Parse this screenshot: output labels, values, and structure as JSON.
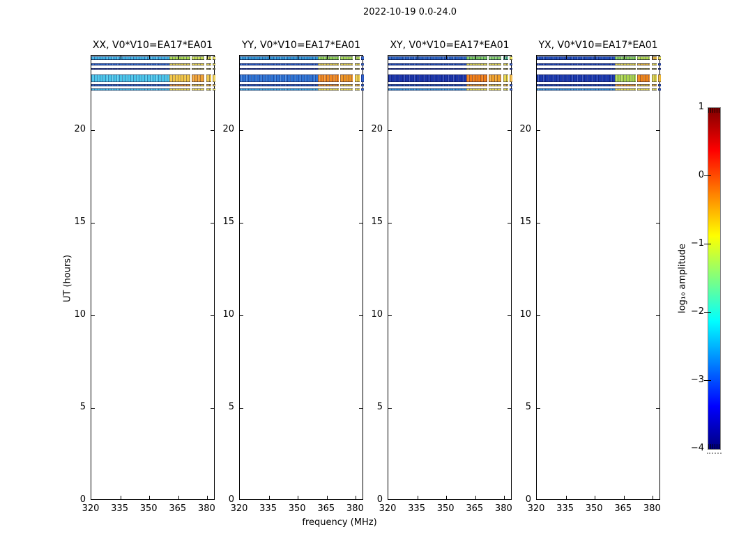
{
  "page": {
    "background": "#ffffff"
  },
  "header": {
    "title": "2022-10-19 0.0-24.0"
  },
  "chart_data": {
    "type": "heatmap",
    "title": "2022-10-19 0.0-24.0",
    "xlabel": "frequency (MHz)",
    "ylabel": "UT (hours)",
    "x_tick_labels": [
      "320",
      "335",
      "350",
      "365",
      "380"
    ],
    "x_tick_values": [
      320,
      335,
      350,
      365,
      380
    ],
    "y_tick_labels": [
      "0",
      "5",
      "10",
      "15",
      "20"
    ],
    "y_tick_values": [
      0,
      5,
      10,
      15,
      20
    ],
    "xlim": [
      320,
      384.2
    ],
    "ylim": [
      0,
      24
    ],
    "grid": false,
    "legend": "none",
    "colorbar": {
      "label": "log₁₀ amplitude",
      "tick_labels": [
        "1",
        "0",
        "−1",
        "−2",
        "−3",
        "−4"
      ],
      "tick_values": [
        1,
        0,
        -1,
        -2,
        -3,
        -4
      ],
      "vmin": -4,
      "vmax": 1,
      "colormap": "jet",
      "gradient_stops": [
        [
          0,
          "#00007f"
        ],
        [
          0.125,
          "#0000ff"
        ],
        [
          0.375,
          "#00ffff"
        ],
        [
          0.625,
          "#ffff00"
        ],
        [
          0.875,
          "#ff0000"
        ],
        [
          1,
          "#7f0000"
        ]
      ]
    },
    "row_bands_ut": [
      [
        23.76,
        23.95
      ],
      [
        23.46,
        23.58
      ],
      [
        23.23,
        23.34
      ],
      [
        22.57,
        22.97
      ],
      [
        22.35,
        22.46
      ],
      [
        22.13,
        22.24
      ]
    ],
    "band_segments_mhz": [
      [
        360.5,
        371.2
      ],
      [
        372.0,
        378.6
      ],
      [
        379.4,
        381.9
      ],
      [
        382.6,
        384.2
      ]
    ],
    "band_left_mhz": [
      320,
      360.5
    ],
    "panels": [
      {
        "label": "XX, V0*V10=EA17*EA01",
        "rows": [
          {
            "left": "#3fb2e4",
            "segs": [
              "#a8d84e",
              "#c2da4e",
              "#d6d74b",
              "#e0d84e"
            ]
          },
          {
            "left": "#2f66c8",
            "segs": [
              "#e2ce4a",
              "#ecd84e",
              "#e6d44b",
              "#dcd24a"
            ]
          },
          {
            "left": "#2446b0",
            "segs": [
              "#d2ca48",
              "#d8ce4a",
              "#ccc846",
              "#d0cc48"
            ]
          },
          {
            "left": "#4cc6ea",
            "segs": [
              "#f2c544",
              "#f0a234",
              "#ecc343",
              "#eccb49"
            ]
          },
          {
            "left": "#2f66c8",
            "segs": [
              "#f2a132",
              "#eec846",
              "#f0b83c",
              "#e8c244"
            ]
          },
          {
            "left": "#41b4dc",
            "segs": [
              "#e4d04a",
              "#ead64e",
              "#dcd048",
              "#e2d44c"
            ]
          }
        ]
      },
      {
        "label": "YY, V0*V10=EA17*EA01",
        "rows": [
          {
            "left": "#2f96d6",
            "segs": [
              "#8fd054",
              "#a5d854",
              "#b4da52",
              "#2a60c8"
            ]
          },
          {
            "left": "#2a5cc4",
            "segs": [
              "#e2cc48",
              "#e8d44c",
              "#e0d048",
              "#2a5cc4"
            ]
          },
          {
            "left": "#1c3cae",
            "segs": [
              "#d4ca48",
              "#d0c646",
              "#d6cc4a",
              "#1c3cae"
            ]
          },
          {
            "left": "#2f74d4",
            "segs": [
              "#f28a22",
              "#f0931f",
              "#ecc83f",
              "#2253c0"
            ]
          },
          {
            "left": "#2a5cc4",
            "segs": [
              "#f29a2a",
              "#eec846",
              "#f0bc3e",
              "#2a5cc4"
            ]
          },
          {
            "left": "#35a0d8",
            "segs": [
              "#e2d04a",
              "#e8d64e",
              "#ded24a",
              "#2a5cc4"
            ]
          }
        ]
      },
      {
        "label": "XY, V0*V10=EA17*EA01",
        "rows": [
          {
            "left": "#2a64c4",
            "segs": [
              "#79ca5e",
              "#85cf6b",
              "#62c893",
              "#e8e04e"
            ]
          },
          {
            "left": "#2450b8",
            "segs": [
              "#dcd24a",
              "#e2d64c",
              "#d8ce48",
              "#2450b8"
            ]
          },
          {
            "left": "#1c3cae",
            "segs": [
              "#ccc646",
              "#d2ca48",
              "#c8c244",
              "#1c3cae"
            ]
          },
          {
            "left": "#1b35aa",
            "segs": [
              "#f07d16",
              "#f0a028",
              "#e6d246",
              "#f0b438"
            ]
          },
          {
            "left": "#2450b8",
            "segs": [
              "#f0a02c",
              "#ecca46",
              "#eec040",
              "#2450b8"
            ]
          },
          {
            "left": "#2f8cd0",
            "segs": [
              "#ded24a",
              "#e6d84e",
              "#d8d048",
              "#2450b8"
            ]
          }
        ]
      },
      {
        "label": "YX, V0*V10=EA17*EA01",
        "rows": [
          {
            "left": "#2250bc",
            "segs": [
              "#84cc58",
              "#b2d850",
              "#eab838",
              "#dcd44c"
            ]
          },
          {
            "left": "#2148b4",
            "segs": [
              "#ded04a",
              "#e6b83c",
              "#e0d24a",
              "#2148b4"
            ]
          },
          {
            "left": "#1c3cae",
            "segs": [
              "#d0c848",
              "#d4cc4a",
              "#cac444",
              "#1c3cae"
            ]
          },
          {
            "left": "#1c3aae",
            "segs": [
              "#aad44e",
              "#f08518",
              "#d8cc42",
              "#e8b232"
            ]
          },
          {
            "left": "#2148b4",
            "segs": [
              "#f0a42e",
              "#e8c442",
              "#ecba3c",
              "#2148b4"
            ]
          },
          {
            "left": "#2f8cd0",
            "segs": [
              "#dcd24a",
              "#e4d64c",
              "#d6ce48",
              "#2148b4"
            ]
          }
        ]
      }
    ]
  }
}
